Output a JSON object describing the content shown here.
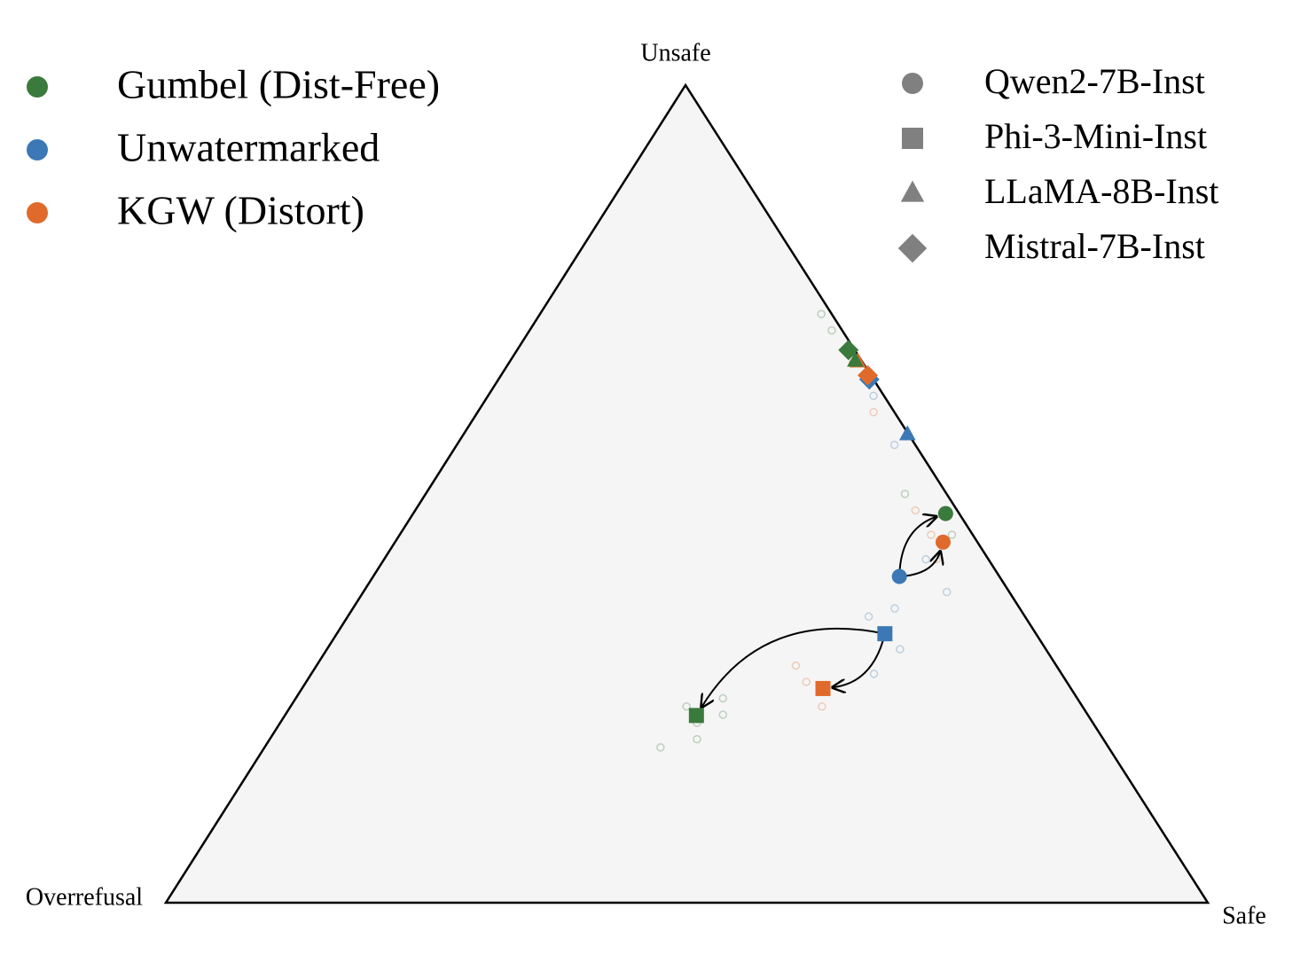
{
  "chart_data": {
    "type": "ternary",
    "corner_labels": {
      "top": "Unsafe",
      "left": "Overrefusal",
      "right": "Safe"
    },
    "models": [
      {
        "name": "Qwen2-7B-Inst",
        "marker": "circle"
      },
      {
        "name": "Phi-3-Mini-Inst",
        "marker": "square"
      },
      {
        "name": "LLaMA-8B-Inst",
        "marker": "triangle"
      },
      {
        "name": "Mistral-7B-Inst",
        "marker": "diamond"
      }
    ],
    "series": [
      {
        "name": "Gumbel (Dist-Free)",
        "color": "#3a7a3c",
        "unsafe": [
          47.6,
          22.9,
          66.3,
          67.6
        ],
        "safe": [
          51.1,
          39.5,
          33.1,
          31.8
        ],
        "overrefusal": [
          1.3,
          37.6,
          0.6,
          0.6
        ],
        "samples": {
          "unsafe": [
            22,
            24,
            20,
            25,
            19,
            23,
            50,
            45,
            72,
            70
          ],
          "safe": [
            40,
            38,
            41,
            41,
            38,
            42,
            46,
            53,
            27,
            29
          ],
          "overrefusal": [
            38,
            38,
            39,
            34,
            43,
            35,
            4,
            2,
            1,
            1
          ]
        }
      },
      {
        "name": "Unwatermarked",
        "color": "#3b78b5",
        "unsafe": [
          39.9,
          32.9,
          57.3,
          64.0
        ],
        "safe": [
          50.5,
          52.6,
          42.6,
          35.6
        ],
        "overrefusal": [
          9.6,
          14.5,
          0.1,
          0.4
        ],
        "samples": {
          "unsafe": [
            42,
            36,
            31,
            28,
            35,
            62,
            56,
            38
          ],
          "safe": [
            52,
            52,
            55,
            54,
            50,
            37,
            42,
            56
          ],
          "overrefusal": [
            6,
            12,
            14,
            18,
            15,
            1,
            2,
            6
          ]
        }
      },
      {
        "name": "KGW (Distort)",
        "color": "#e06a2b",
        "unsafe": [
          44.1,
          26.2,
          66.2,
          64.5
        ],
        "safe": [
          52.6,
          50.0,
          33.4,
          35.2
        ],
        "overrefusal": [
          3.3,
          23.8,
          0.4,
          0.3
        ],
        "samples": {
          "unsafe": [
            27,
            29,
            24,
            45,
            42,
            48,
            60,
            66
          ],
          "safe": [
            48,
            46,
            51,
            51,
            53,
            48,
            38,
            33
          ],
          "overrefusal": [
            25,
            25,
            25,
            4,
            5,
            4,
            2,
            1
          ]
        }
      }
    ]
  }
}
